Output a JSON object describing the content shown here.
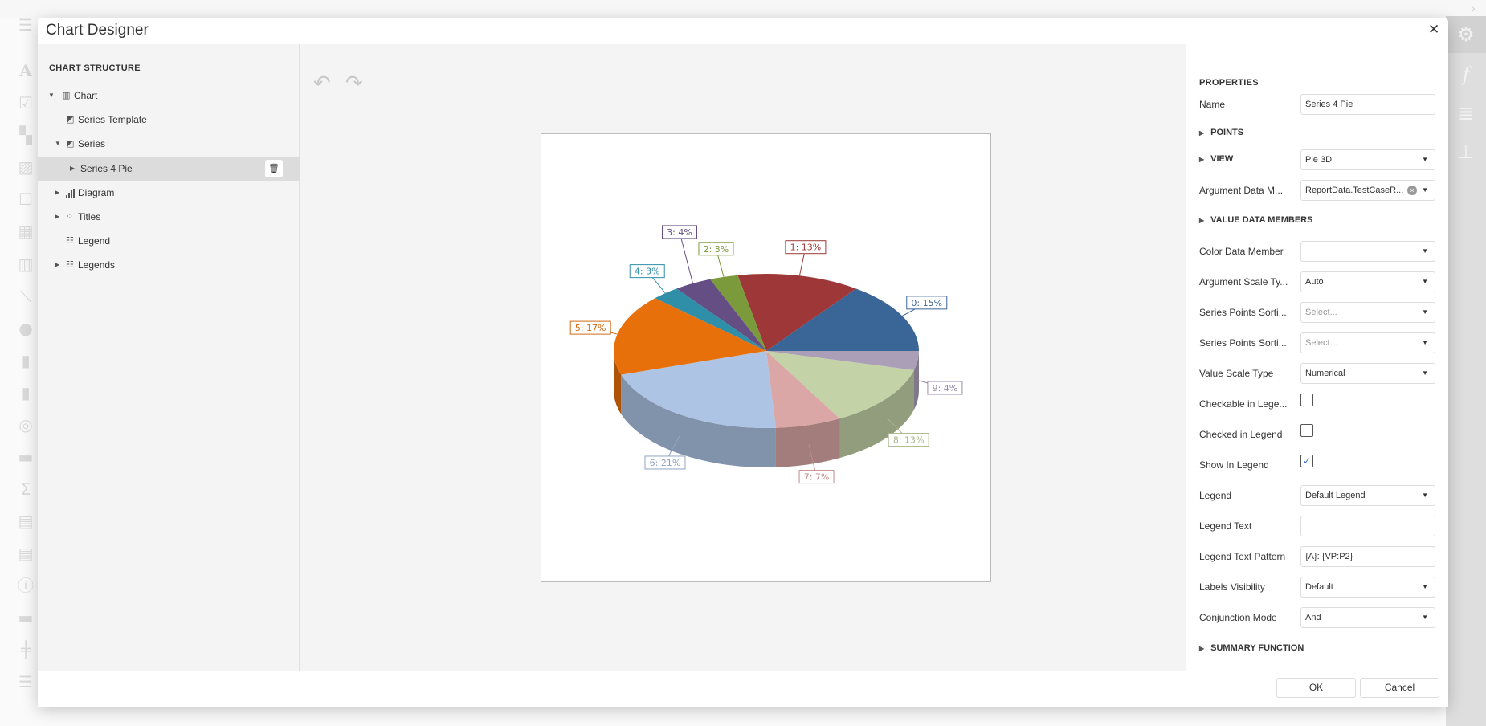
{
  "dialog": {
    "title": "Chart Designer",
    "close_icon": "close-icon"
  },
  "structure": {
    "title": "CHART STRUCTURE",
    "items": [
      {
        "label": "Chart",
        "icon": "chart-icon",
        "expanded": true
      },
      {
        "label": "Series Template",
        "icon": "series-icon"
      },
      {
        "label": "Series",
        "icon": "series-icon",
        "expanded": true
      },
      {
        "label": "Series 4 Pie",
        "selected": true
      },
      {
        "label": "Diagram",
        "icon": "diagram-icon"
      },
      {
        "label": "Titles",
        "icon": "titles-icon"
      },
      {
        "label": "Legend",
        "icon": "legend-icon"
      },
      {
        "label": "Legends",
        "icon": "legend-icon"
      }
    ]
  },
  "properties": {
    "title": "PROPERTIES",
    "name_label": "Name",
    "name_value": "Series 4 Pie",
    "points_group": "POINTS",
    "view_group": "VIEW",
    "view_value": "Pie 3D",
    "arg_member_label": "Argument Data M...",
    "arg_member_value": "ReportData.TestCaseR...",
    "value_members_group": "VALUE DATA MEMBERS",
    "color_member_label": "Color Data Member",
    "color_member_value": "",
    "arg_scale_label": "Argument Scale Ty...",
    "arg_scale_value": "Auto",
    "sort1_label": "Series Points Sorti...",
    "sort1_placeholder": "Select...",
    "sort2_label": "Series Points Sorti...",
    "sort2_placeholder": "Select...",
    "value_scale_label": "Value Scale Type",
    "value_scale_value": "Numerical",
    "checkable_label": "Checkable in Lege...",
    "checkable": false,
    "checked_label": "Checked in Legend",
    "checked": false,
    "show_label": "Show In Legend",
    "show": true,
    "check_mark": "✓",
    "legend_label": "Legend",
    "legend_value": "Default Legend",
    "legend_text_label": "Legend Text",
    "legend_text_value": "",
    "pattern_label": "Legend Text Pattern",
    "pattern_value": "{A}: {VP:P2}",
    "labels_vis_label": "Labels Visibility",
    "labels_vis_value": "Default",
    "conj_label": "Conjunction Mode",
    "conj_value": "And",
    "summary_group": "SUMMARY FUNCTION"
  },
  "footer": {
    "ok": "OK",
    "cancel": "Cancel"
  },
  "chart_data": {
    "type": "pie",
    "view": "3D",
    "categories": [
      "0",
      "1",
      "2",
      "3",
      "4",
      "5",
      "6",
      "7",
      "8",
      "9"
    ],
    "values": [
      15,
      13,
      3,
      4,
      3,
      17,
      21,
      7,
      13,
      4
    ],
    "labels": [
      "0: 15%",
      "1: 13%",
      "2: 3%",
      "3: 4%",
      "4: 3%",
      "5: 17%",
      "6: 21%",
      "7: 7%",
      "8: 13%",
      "9: 4%"
    ],
    "colors": [
      "#396597",
      "#9e3838",
      "#7b9a3b",
      "#644e83",
      "#2f8ea8",
      "#e8700b",
      "#adc4e4",
      "#daa7a6",
      "#c3d2a7",
      "#ab9fb7"
    ],
    "label_colors": [
      "#396597",
      "#9e3838",
      "#7b9a3b",
      "#644e83",
      "#2f8ea8",
      "#d36a12",
      "#8fa3c2",
      "#c28a8a",
      "#a9b58c",
      "#9a8ba9"
    ]
  }
}
